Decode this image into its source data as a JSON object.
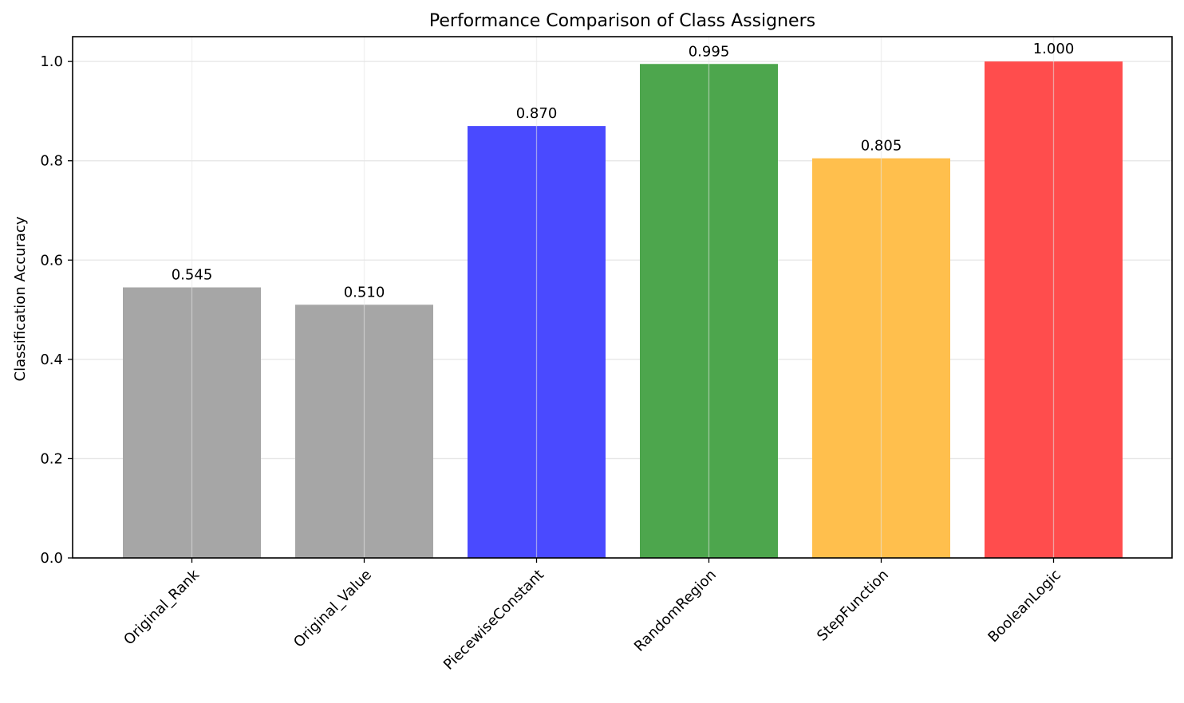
{
  "chart_data": {
    "type": "bar",
    "title": "Performance Comparison of Class Assigners",
    "xlabel": "",
    "ylabel": "Classification Accuracy",
    "categories": [
      "Original_Rank",
      "Original_Value",
      "PiecewiseConstant",
      "RandomRegion",
      "StepFunction",
      "BooleanLogic"
    ],
    "values": [
      0.545,
      0.51,
      0.87,
      0.995,
      0.805,
      1.0
    ],
    "value_labels": [
      "0.545",
      "0.510",
      "0.870",
      "0.995",
      "0.805",
      "1.000"
    ],
    "colors": [
      "#a6a6a6",
      "#a6a6a6",
      "#4a4aff",
      "#4da64d",
      "#ffbf4d",
      "#ff4d4d"
    ],
    "ylim": [
      0,
      1.05
    ],
    "yticks": [
      0.0,
      0.2,
      0.4,
      0.6,
      0.8,
      1.0
    ],
    "ytick_labels": [
      "0.0",
      "0.2",
      "0.4",
      "0.6",
      "0.8",
      "1.0"
    ],
    "grid": true,
    "xtick_rotation": 45
  }
}
